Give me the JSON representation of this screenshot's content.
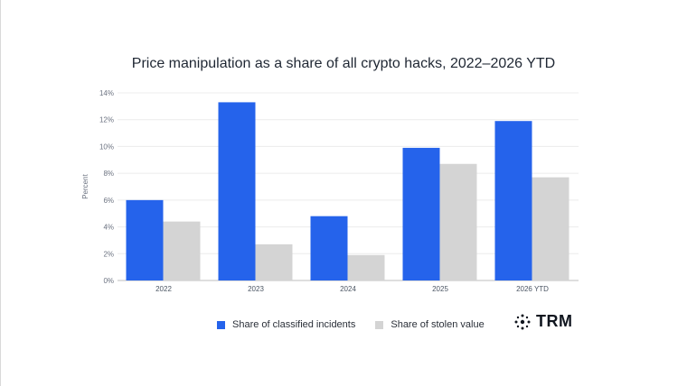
{
  "chart_data": {
    "type": "bar",
    "title": "Price manipulation as a share of all crypto hacks, 2022–2026 YTD",
    "ylabel": "Percent",
    "xlabel": "",
    "categories": [
      "2022",
      "2023",
      "2024",
      "2025",
      "2026 YTD"
    ],
    "series": [
      {
        "name": "Share of classified incidents",
        "values": [
          6.0,
          13.3,
          4.8,
          9.9,
          11.9
        ],
        "color": "#2563eb"
      },
      {
        "name": "Share of stolen value",
        "values": [
          4.4,
          2.7,
          1.9,
          8.7,
          7.7
        ],
        "color": "#d4d4d4"
      }
    ],
    "ylim": [
      0,
      14
    ],
    "yticks": [
      0,
      2,
      4,
      6,
      8,
      10,
      12,
      14
    ],
    "ytick_labels": [
      "0%",
      "2%",
      "4%",
      "6%",
      "8%",
      "10%",
      "12%",
      "14%"
    ],
    "grid": true,
    "legend_position": "bottom"
  },
  "logo": {
    "text": "TRM",
    "icon": "sparkle-cluster-icon"
  }
}
